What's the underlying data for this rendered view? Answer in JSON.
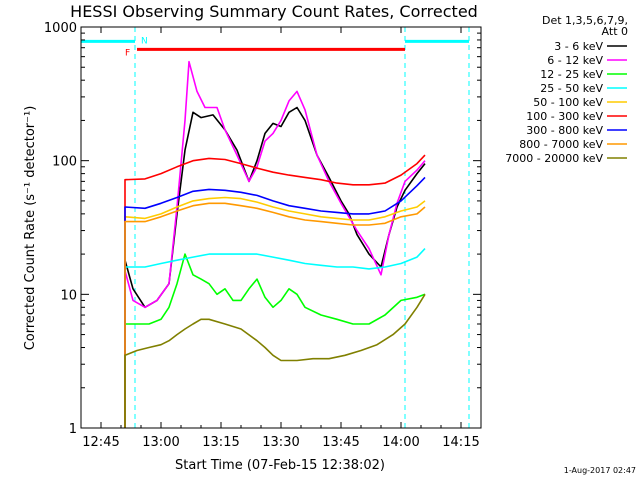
{
  "chart_data": {
    "type": "line",
    "title": "HESSI Observing Summary Count Rates, Corrected",
    "xlabel": "Start Time (07-Feb-15 12:38:02)",
    "ylabel": "Corrected Count Rate (s⁻¹ detector⁻¹)",
    "y_scale": "log",
    "ylim": [
      1,
      1000
    ],
    "xlim_minutes_from_1240": [
      0,
      100
    ],
    "x_ticks": [
      {
        "label": "12:45",
        "min": 5
      },
      {
        "label": "13:00",
        "min": 20
      },
      {
        "label": "13:15",
        "min": 35
      },
      {
        "label": "13:30",
        "min": 50
      },
      {
        "label": "13:45",
        "min": 65
      },
      {
        "label": "14:00",
        "min": 80
      },
      {
        "label": "14:15",
        "min": 95
      }
    ],
    "y_ticks": [
      {
        "label": "1",
        "value": 1
      },
      {
        "label": "10",
        "value": 10
      },
      {
        "label": "100",
        "value": 100
      },
      {
        "label": "1000",
        "value": 1000
      }
    ],
    "legend_header": [
      "Det 1,3,5,6,7,9,",
      "Att 0"
    ],
    "annotations": {
      "night_label": "N",
      "flare_label": "F",
      "night_intervals_min": [
        [
          0,
          13.5
        ],
        [
          81,
          97
        ]
      ],
      "flare_interval_min": [
        14,
        81
      ],
      "dashed_markers_min": [
        13.5,
        81,
        97
      ],
      "data_gap_min": [
        81,
        82
      ]
    },
    "series": [
      {
        "name": "3 - 6 keV",
        "color": "#000000",
        "points": [
          [
            11,
            18
          ],
          [
            13,
            11
          ],
          [
            16,
            8
          ],
          [
            19,
            9
          ],
          [
            22,
            12
          ],
          [
            24,
            40
          ],
          [
            26,
            120
          ],
          [
            28,
            230
          ],
          [
            30,
            210
          ],
          [
            33,
            220
          ],
          [
            36,
            170
          ],
          [
            39,
            120
          ],
          [
            42,
            70
          ],
          [
            44,
            100
          ],
          [
            46,
            160
          ],
          [
            48,
            190
          ],
          [
            50,
            180
          ],
          [
            52,
            230
          ],
          [
            54,
            250
          ],
          [
            56,
            200
          ],
          [
            59,
            110
          ],
          [
            62,
            75
          ],
          [
            65,
            50
          ],
          [
            67,
            40
          ],
          [
            69,
            28
          ],
          [
            72,
            20
          ],
          [
            75,
            16
          ],
          [
            77,
            28
          ],
          [
            79,
            45
          ],
          [
            81,
            60
          ],
          [
            84,
            80
          ],
          [
            86,
            95
          ]
        ]
      },
      {
        "name": "6 - 12 keV",
        "color": "#ff00ff",
        "points": [
          [
            11,
            15
          ],
          [
            13,
            9
          ],
          [
            16,
            8
          ],
          [
            19,
            9
          ],
          [
            22,
            12
          ],
          [
            24,
            45
          ],
          [
            26,
            200
          ],
          [
            27,
            550
          ],
          [
            29,
            330
          ],
          [
            31,
            250
          ],
          [
            34,
            250
          ],
          [
            36,
            170
          ],
          [
            39,
            110
          ],
          [
            42,
            70
          ],
          [
            44,
            90
          ],
          [
            46,
            140
          ],
          [
            48,
            160
          ],
          [
            50,
            200
          ],
          [
            52,
            280
          ],
          [
            54,
            330
          ],
          [
            56,
            240
          ],
          [
            59,
            110
          ],
          [
            62,
            70
          ],
          [
            65,
            48
          ],
          [
            67,
            38
          ],
          [
            69,
            30
          ],
          [
            72,
            22
          ],
          [
            75,
            14
          ],
          [
            77,
            28
          ],
          [
            79,
            48
          ],
          [
            81,
            70
          ],
          [
            84,
            85
          ],
          [
            86,
            100
          ]
        ]
      },
      {
        "name": "12 - 25 keV",
        "color": "#00ff00",
        "points": [
          [
            11,
            6
          ],
          [
            14,
            6
          ],
          [
            17,
            6
          ],
          [
            20,
            6.5
          ],
          [
            22,
            8
          ],
          [
            24,
            12
          ],
          [
            26,
            20
          ],
          [
            28,
            14
          ],
          [
            30,
            13
          ],
          [
            32,
            12
          ],
          [
            34,
            10
          ],
          [
            36,
            11
          ],
          [
            38,
            9
          ],
          [
            40,
            9
          ],
          [
            42,
            11
          ],
          [
            44,
            13
          ],
          [
            46,
            9.5
          ],
          [
            48,
            8
          ],
          [
            50,
            9
          ],
          [
            52,
            11
          ],
          [
            54,
            10
          ],
          [
            56,
            8
          ],
          [
            60,
            7
          ],
          [
            64,
            6.5
          ],
          [
            68,
            6
          ],
          [
            72,
            6
          ],
          [
            76,
            7
          ],
          [
            80,
            9
          ],
          [
            84,
            9.5
          ],
          [
            86,
            10
          ]
        ]
      },
      {
        "name": "25 - 50 keV",
        "color": "#00ffff",
        "points": [
          [
            11,
            16
          ],
          [
            16,
            16
          ],
          [
            20,
            17
          ],
          [
            24,
            18
          ],
          [
            28,
            19
          ],
          [
            32,
            20
          ],
          [
            36,
            20
          ],
          [
            40,
            20
          ],
          [
            44,
            20
          ],
          [
            48,
            19
          ],
          [
            52,
            18
          ],
          [
            56,
            17
          ],
          [
            60,
            16.5
          ],
          [
            64,
            16
          ],
          [
            68,
            16
          ],
          [
            72,
            15.5
          ],
          [
            76,
            16
          ],
          [
            80,
            17
          ],
          [
            84,
            19
          ],
          [
            86,
            22
          ]
        ]
      },
      {
        "name": "50 - 100 keV",
        "color": "#ffcc00",
        "points": [
          [
            11,
            38
          ],
          [
            16,
            37
          ],
          [
            20,
            40
          ],
          [
            24,
            45
          ],
          [
            28,
            50
          ],
          [
            32,
            52
          ],
          [
            36,
            53
          ],
          [
            40,
            52
          ],
          [
            44,
            49
          ],
          [
            48,
            45
          ],
          [
            52,
            42
          ],
          [
            56,
            40
          ],
          [
            60,
            38
          ],
          [
            64,
            37
          ],
          [
            68,
            36
          ],
          [
            72,
            36
          ],
          [
            76,
            38
          ],
          [
            80,
            42
          ],
          [
            84,
            45
          ],
          [
            86,
            50
          ]
        ]
      },
      {
        "name": "100 - 300 keV",
        "color": "#ff0000",
        "points": [
          [
            11,
            72
          ],
          [
            16,
            73
          ],
          [
            20,
            80
          ],
          [
            24,
            90
          ],
          [
            28,
            100
          ],
          [
            32,
            104
          ],
          [
            36,
            102
          ],
          [
            40,
            95
          ],
          [
            44,
            88
          ],
          [
            48,
            82
          ],
          [
            52,
            78
          ],
          [
            56,
            75
          ],
          [
            60,
            72
          ],
          [
            64,
            68
          ],
          [
            68,
            66
          ],
          [
            72,
            66
          ],
          [
            76,
            68
          ],
          [
            80,
            78
          ],
          [
            84,
            95
          ],
          [
            86,
            110
          ]
        ]
      },
      {
        "name": "300 - 800 keV",
        "color": "#0000ff",
        "points": [
          [
            11,
            45
          ],
          [
            16,
            44
          ],
          [
            20,
            48
          ],
          [
            24,
            53
          ],
          [
            28,
            59
          ],
          [
            32,
            61
          ],
          [
            36,
            60
          ],
          [
            40,
            58
          ],
          [
            44,
            55
          ],
          [
            48,
            50
          ],
          [
            52,
            46
          ],
          [
            56,
            44
          ],
          [
            60,
            42
          ],
          [
            64,
            41
          ],
          [
            68,
            40
          ],
          [
            72,
            40
          ],
          [
            76,
            42
          ],
          [
            80,
            50
          ],
          [
            84,
            65
          ],
          [
            86,
            75
          ]
        ]
      },
      {
        "name": "800 - 7000 keV",
        "color": "#ff9900",
        "points": [
          [
            11,
            35
          ],
          [
            16,
            35
          ],
          [
            20,
            38
          ],
          [
            24,
            42
          ],
          [
            28,
            46
          ],
          [
            32,
            48
          ],
          [
            36,
            48
          ],
          [
            40,
            46
          ],
          [
            44,
            44
          ],
          [
            48,
            41
          ],
          [
            52,
            38
          ],
          [
            56,
            36
          ],
          [
            60,
            35
          ],
          [
            64,
            34
          ],
          [
            68,
            33
          ],
          [
            72,
            33
          ],
          [
            76,
            34
          ],
          [
            80,
            38
          ],
          [
            84,
            40
          ],
          [
            86,
            45
          ]
        ]
      },
      {
        "name": "7000 - 20000 keV",
        "color": "#808000",
        "points": [
          [
            11,
            3.5
          ],
          [
            14,
            3.8
          ],
          [
            17,
            4
          ],
          [
            20,
            4.2
          ],
          [
            22,
            4.5
          ],
          [
            24,
            5
          ],
          [
            26,
            5.5
          ],
          [
            28,
            6
          ],
          [
            30,
            6.5
          ],
          [
            32,
            6.5
          ],
          [
            36,
            6
          ],
          [
            40,
            5.5
          ],
          [
            44,
            4.5
          ],
          [
            46,
            4
          ],
          [
            48,
            3.5
          ],
          [
            50,
            3.2
          ],
          [
            54,
            3.2
          ],
          [
            58,
            3.3
          ],
          [
            62,
            3.3
          ],
          [
            66,
            3.5
          ],
          [
            70,
            3.8
          ],
          [
            74,
            4.2
          ],
          [
            78,
            5
          ],
          [
            81,
            6
          ],
          [
            84,
            8
          ],
          [
            86,
            10
          ]
        ]
      }
    ]
  },
  "footer": {
    "timestamp": "1-Aug-2017 02:47"
  }
}
